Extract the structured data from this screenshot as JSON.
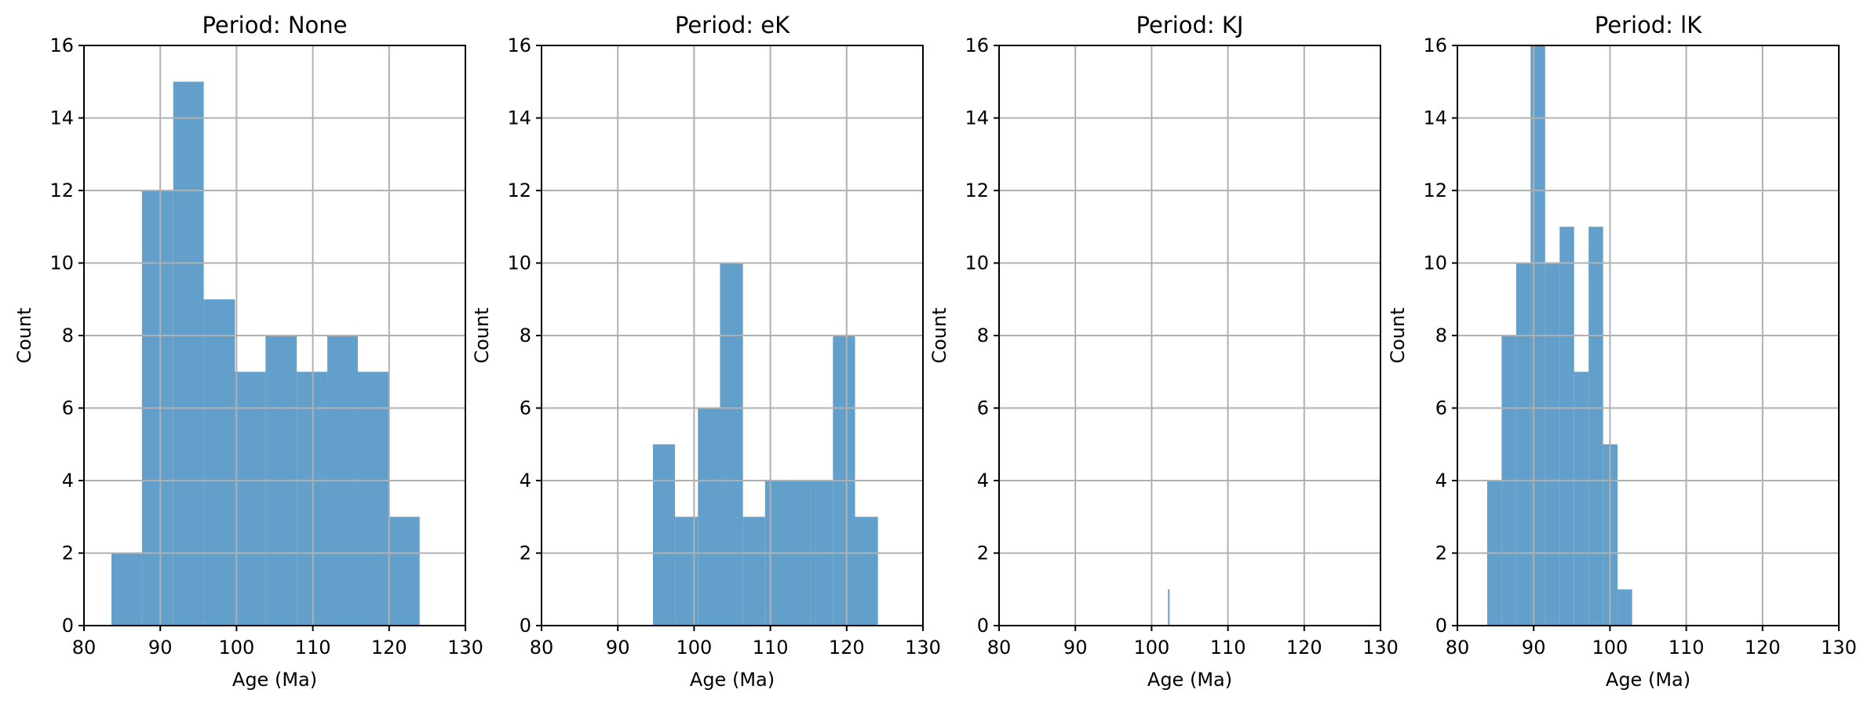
{
  "colors": {
    "bar": "#639fcb",
    "grid": "#b0b0b0",
    "axis": "#000000"
  },
  "chart_data": [
    {
      "type": "bar",
      "title": "Period: None",
      "xlabel": "Age (Ma)",
      "ylabel": "Count",
      "xlim": [
        80,
        130
      ],
      "ylim": [
        0,
        16
      ],
      "xticks": [
        80,
        90,
        100,
        110,
        120,
        130
      ],
      "yticks": [
        0,
        2,
        4,
        6,
        8,
        10,
        12,
        14,
        16
      ],
      "grid": true,
      "bins": [
        {
          "x0": 83.6,
          "x1": 87.6,
          "value": 2
        },
        {
          "x0": 87.6,
          "x1": 91.7,
          "value": 12
        },
        {
          "x0": 91.7,
          "x1": 95.7,
          "value": 15
        },
        {
          "x0": 95.7,
          "x1": 99.8,
          "value": 9
        },
        {
          "x0": 99.8,
          "x1": 103.8,
          "value": 7
        },
        {
          "x0": 103.8,
          "x1": 107.9,
          "value": 8
        },
        {
          "x0": 107.9,
          "x1": 111.9,
          "value": 7
        },
        {
          "x0": 111.9,
          "x1": 115.9,
          "value": 8
        },
        {
          "x0": 115.9,
          "x1": 120.0,
          "value": 7
        },
        {
          "x0": 120.0,
          "x1": 124.0,
          "value": 3
        }
      ]
    },
    {
      "type": "bar",
      "title": "Period: eK",
      "xlabel": "Age (Ma)",
      "ylabel": "Count",
      "xlim": [
        80,
        130
      ],
      "ylim": [
        0,
        16
      ],
      "xticks": [
        80,
        90,
        100,
        110,
        120,
        130
      ],
      "yticks": [
        0,
        2,
        4,
        6,
        8,
        10,
        12,
        14,
        16
      ],
      "grid": true,
      "bins": [
        {
          "x0": 94.6,
          "x1": 97.5,
          "value": 5
        },
        {
          "x0": 97.5,
          "x1": 100.5,
          "value": 3
        },
        {
          "x0": 100.5,
          "x1": 103.4,
          "value": 6
        },
        {
          "x0": 103.4,
          "x1": 106.4,
          "value": 10
        },
        {
          "x0": 106.4,
          "x1": 109.3,
          "value": 3
        },
        {
          "x0": 109.3,
          "x1": 112.3,
          "value": 4
        },
        {
          "x0": 112.3,
          "x1": 115.2,
          "value": 4
        },
        {
          "x0": 115.2,
          "x1": 118.2,
          "value": 4
        },
        {
          "x0": 118.2,
          "x1": 121.1,
          "value": 8
        },
        {
          "x0": 121.1,
          "x1": 124.1,
          "value": 3
        }
      ]
    },
    {
      "type": "bar",
      "title": "Period: KJ",
      "xlabel": "Age (Ma)",
      "ylabel": "Count",
      "xlim": [
        80,
        130
      ],
      "ylim": [
        0,
        16
      ],
      "xticks": [
        80,
        90,
        100,
        110,
        120,
        130
      ],
      "yticks": [
        0,
        2,
        4,
        6,
        8,
        10,
        12,
        14,
        16
      ],
      "grid": true,
      "bins": [
        {
          "x0": 102.15,
          "x1": 102.35,
          "value": 1
        }
      ]
    },
    {
      "type": "bar",
      "title": "Period: lK",
      "xlabel": "Age (Ma)",
      "ylabel": "Count",
      "xlim": [
        80,
        130
      ],
      "ylim": [
        0,
        16
      ],
      "xticks": [
        80,
        90,
        100,
        110,
        120,
        130
      ],
      "yticks": [
        0,
        2,
        4,
        6,
        8,
        10,
        12,
        14,
        16
      ],
      "grid": true,
      "bins": [
        {
          "x0": 83.9,
          "x1": 85.8,
          "value": 4
        },
        {
          "x0": 85.8,
          "x1": 87.7,
          "value": 8
        },
        {
          "x0": 87.7,
          "x1": 89.6,
          "value": 10
        },
        {
          "x0": 89.6,
          "x1": 91.5,
          "value": 16
        },
        {
          "x0": 91.5,
          "x1": 93.4,
          "value": 10
        },
        {
          "x0": 93.4,
          "x1": 95.3,
          "value": 11
        },
        {
          "x0": 95.3,
          "x1": 97.2,
          "value": 7
        },
        {
          "x0": 97.2,
          "x1": 99.1,
          "value": 11
        },
        {
          "x0": 99.1,
          "x1": 101.0,
          "value": 5
        },
        {
          "x0": 101.0,
          "x1": 102.9,
          "value": 1
        }
      ]
    }
  ]
}
